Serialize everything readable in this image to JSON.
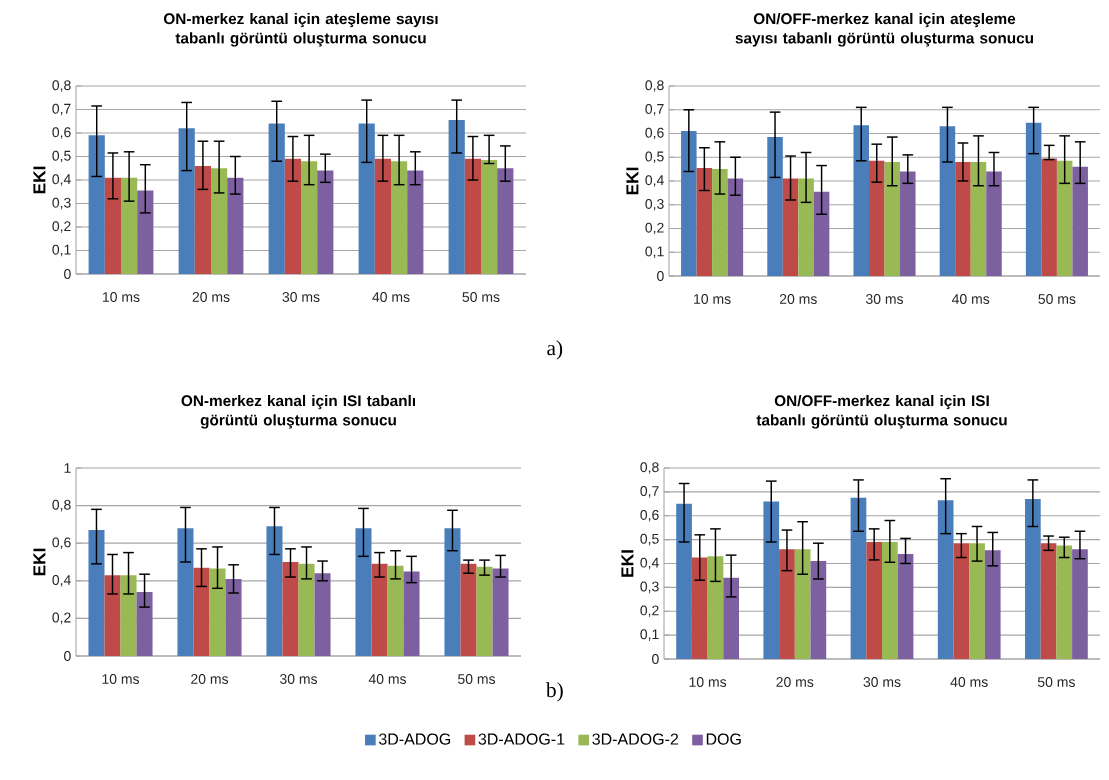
{
  "chart_data": [
    {
      "type": "bar",
      "title": "ON-merkez kanal için ateşleme sayısı tabanlı görüntü oluşturma sonucu",
      "ylabel": "EKI",
      "categories": [
        "10 ms",
        "20 ms",
        "30 ms",
        "40 ms",
        "50 ms"
      ],
      "ylim": [
        0,
        0.8
      ],
      "yticks": [
        0,
        {
          "value": 0.1,
          "label": "0,1"
        },
        {
          "value": 0.2,
          "label": "0,2"
        },
        {
          "value": 0.3,
          "label": "0,3"
        },
        {
          "value": 0.4,
          "label": "0,4"
        },
        {
          "value": 0.5,
          "label": "0,5"
        },
        {
          "value": 0.6,
          "label": "0,6"
        },
        {
          "value": 0.7,
          "label": "0,7"
        },
        {
          "value": 0.8,
          "label": "0,8"
        }
      ],
      "grid": "y",
      "legend": false,
      "annotations": [
        "a)"
      ],
      "series": [
        {
          "color": "#4a7ebb",
          "values": [
            0.59,
            0.62,
            0.64,
            0.64,
            0.655
          ],
          "errors": [
            [
              0.415,
              0.715
            ],
            [
              0.44,
              0.73
            ],
            [
              0.48,
              0.735
            ],
            [
              0.475,
              0.74
            ],
            [
              0.515,
              0.74
            ]
          ]
        },
        {
          "color": "#be4b48",
          "values": [
            0.41,
            0.46,
            0.49,
            0.49,
            0.49
          ],
          "errors": [
            [
              0.32,
              0.515
            ],
            [
              0.36,
              0.565
            ],
            [
              0.395,
              0.585
            ],
            [
              0.395,
              0.59
            ],
            [
              0.4,
              0.585
            ]
          ]
        },
        {
          "color": "#98b954",
          "values": [
            0.41,
            0.45,
            0.48,
            0.48,
            0.485
          ],
          "errors": [
            [
              0.31,
              0.52
            ],
            [
              0.345,
              0.565
            ],
            [
              0.38,
              0.59
            ],
            [
              0.38,
              0.59
            ],
            [
              0.47,
              0.59
            ]
          ]
        },
        {
          "color": "#7d60a0",
          "values": [
            0.355,
            0.41,
            0.44,
            0.44,
            0.45
          ],
          "errors": [
            [
              0.26,
              0.465
            ],
            [
              0.34,
              0.5
            ],
            [
              0.39,
              0.51
            ],
            [
              0.38,
              0.52
            ],
            [
              0.395,
              0.545
            ]
          ]
        }
      ]
    },
    {
      "type": "bar",
      "title": "ON/OFF-merkez kanal için ateşleme sayısı tabanlı görüntü oluşturma sonucu",
      "ylabel": "EKI",
      "categories": [
        "10 ms",
        "20 ms",
        "30 ms",
        "40 ms",
        "50 ms"
      ],
      "ylim": [
        0,
        0.8
      ],
      "yticks": [
        0,
        {
          "value": 0.1,
          "label": "0,1"
        },
        {
          "value": 0.2,
          "label": "0,2"
        },
        {
          "value": 0.3,
          "label": "0,3"
        },
        {
          "value": 0.4,
          "label": "0,4"
        },
        {
          "value": 0.5,
          "label": "0,5"
        },
        {
          "value": 0.6,
          "label": "0,6"
        },
        {
          "value": 0.7,
          "label": "0,7"
        },
        {
          "value": 0.8,
          "label": "0,8"
        }
      ],
      "grid": "y",
      "legend": false,
      "series": [
        {
          "color": "#4a7ebb",
          "values": [
            0.61,
            0.585,
            0.635,
            0.63,
            0.645
          ],
          "errors": [
            [
              0.44,
              0.7
            ],
            [
              0.415,
              0.69
            ],
            [
              0.485,
              0.71
            ],
            [
              0.48,
              0.71
            ],
            [
              0.515,
              0.71
            ]
          ]
        },
        {
          "color": "#be4b48",
          "values": [
            0.455,
            0.41,
            0.485,
            0.48,
            0.495
          ],
          "errors": [
            [
              0.36,
              0.54
            ],
            [
              0.32,
              0.505
            ],
            [
              0.395,
              0.555
            ],
            [
              0.4,
              0.56
            ],
            [
              0.49,
              0.55
            ]
          ]
        },
        {
          "color": "#98b954",
          "values": [
            0.45,
            0.41,
            0.48,
            0.48,
            0.485
          ],
          "errors": [
            [
              0.345,
              0.565
            ],
            [
              0.31,
              0.52
            ],
            [
              0.38,
              0.585
            ],
            [
              0.38,
              0.59
            ],
            [
              0.39,
              0.59
            ]
          ]
        },
        {
          "color": "#7d60a0",
          "values": [
            0.41,
            0.355,
            0.44,
            0.44,
            0.46
          ],
          "errors": [
            [
              0.34,
              0.5
            ],
            [
              0.26,
              0.465
            ],
            [
              0.39,
              0.51
            ],
            [
              0.38,
              0.52
            ],
            [
              0.39,
              0.565
            ]
          ]
        }
      ]
    },
    {
      "type": "bar",
      "title": "ON-merkez kanal için ISI tabanlı görüntü oluşturma sonucu",
      "ylabel": "EKI",
      "categories": [
        "10 ms",
        "20 ms",
        "30 ms",
        "40 ms",
        "50 ms"
      ],
      "ylim": [
        0,
        1
      ],
      "yticks": [
        0,
        {
          "value": 0.2,
          "label": "0,2"
        },
        {
          "value": 0.4,
          "label": "0,4"
        },
        {
          "value": 0.6,
          "label": "0,6"
        },
        {
          "value": 0.8,
          "label": "0,8"
        },
        1
      ],
      "grid": "y",
      "legend": "bottom",
      "annotations": [
        "b)"
      ],
      "series": [
        {
          "name": "3D-ADOG",
          "color": "#4a7ebb",
          "values": [
            0.67,
            0.68,
            0.69,
            0.68,
            0.68
          ],
          "errors": [
            [
              0.49,
              0.78
            ],
            [
              0.5,
              0.79
            ],
            [
              0.54,
              0.79
            ],
            [
              0.53,
              0.785
            ],
            [
              0.56,
              0.775
            ]
          ]
        },
        {
          "name": "3D-ADOG-1",
          "color": "#be4b48",
          "values": [
            0.43,
            0.47,
            0.5,
            0.49,
            0.49
          ],
          "errors": [
            [
              0.33,
              0.54
            ],
            [
              0.37,
              0.57
            ],
            [
              0.42,
              0.57
            ],
            [
              0.42,
              0.55
            ],
            [
              0.44,
              0.51
            ]
          ]
        },
        {
          "name": "3D-ADOG-2",
          "color": "#98b954",
          "values": [
            0.43,
            0.465,
            0.49,
            0.48,
            0.475
          ],
          "errors": [
            [
              0.33,
              0.55
            ],
            [
              0.36,
              0.58
            ],
            [
              0.41,
              0.58
            ],
            [
              0.41,
              0.56
            ],
            [
              0.43,
              0.51
            ]
          ]
        },
        {
          "name": "DOG",
          "color": "#7d60a0",
          "values": [
            0.34,
            0.41,
            0.44,
            0.45,
            0.465
          ],
          "errors": [
            [
              0.26,
              0.435
            ],
            [
              0.335,
              0.485
            ],
            [
              0.4,
              0.505
            ],
            [
              0.39,
              0.53
            ],
            [
              0.42,
              0.535
            ]
          ]
        }
      ]
    },
    {
      "type": "bar",
      "title": "ON/OFF-merkez kanal için ISI tabanlı görüntü oluşturma sonucu",
      "ylabel": "EKI",
      "categories": [
        "10 ms",
        "20 ms",
        "30 ms",
        "40 ms",
        "50 ms"
      ],
      "ylim": [
        0,
        0.8
      ],
      "yticks": [
        0,
        {
          "value": 0.1,
          "label": "0,1"
        },
        {
          "value": 0.2,
          "label": "0,2"
        },
        {
          "value": 0.3,
          "label": "0,3"
        },
        {
          "value": 0.4,
          "label": "0,4"
        },
        {
          "value": 0.5,
          "label": "0,5"
        },
        {
          "value": 0.6,
          "label": "0,6"
        },
        {
          "value": 0.7,
          "label": "0,7"
        },
        {
          "value": 0.8,
          "label": "0,8"
        }
      ],
      "grid": "y",
      "legend": false,
      "series": [
        {
          "color": "#4a7ebb",
          "values": [
            0.65,
            0.66,
            0.675,
            0.665,
            0.67
          ],
          "errors": [
            [
              0.49,
              0.735
            ],
            [
              0.49,
              0.745
            ],
            [
              0.535,
              0.75
            ],
            [
              0.525,
              0.755
            ],
            [
              0.555,
              0.75
            ]
          ]
        },
        {
          "color": "#be4b48",
          "values": [
            0.425,
            0.46,
            0.49,
            0.485,
            0.485
          ],
          "errors": [
            [
              0.33,
              0.52
            ],
            [
              0.37,
              0.54
            ],
            [
              0.415,
              0.545
            ],
            [
              0.425,
              0.525
            ],
            [
              0.455,
              0.515
            ]
          ]
        },
        {
          "color": "#98b954",
          "values": [
            0.43,
            0.46,
            0.49,
            0.485,
            0.475
          ],
          "errors": [
            [
              0.325,
              0.545
            ],
            [
              0.355,
              0.575
            ],
            [
              0.405,
              0.58
            ],
            [
              0.41,
              0.555
            ],
            [
              0.425,
              0.51
            ]
          ]
        },
        {
          "color": "#7d60a0",
          "values": [
            0.34,
            0.41,
            0.44,
            0.455,
            0.46
          ],
          "errors": [
            [
              0.26,
              0.435
            ],
            [
              0.335,
              0.485
            ],
            [
              0.4,
              0.505
            ],
            [
              0.39,
              0.53
            ],
            [
              0.42,
              0.535
            ]
          ]
        }
      ]
    }
  ]
}
